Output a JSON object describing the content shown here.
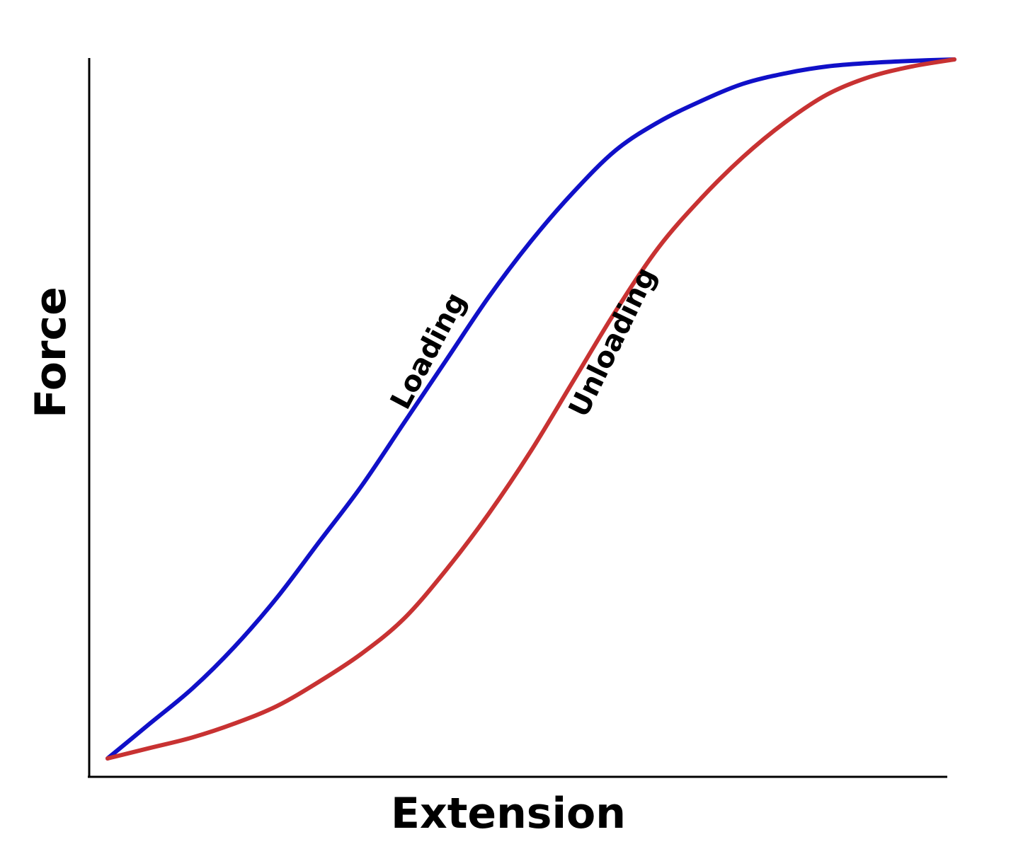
{
  "chart_data": {
    "type": "line",
    "xlabel": "Extension",
    "ylabel": "Force",
    "xlim": [
      0,
      1
    ],
    "ylim": [
      0,
      1
    ],
    "grid": false,
    "legend": "none",
    "series": [
      {
        "name": "Loading",
        "color": "#1010c8",
        "x": [
          0.0,
          0.05,
          0.1,
          0.15,
          0.2,
          0.25,
          0.3,
          0.35,
          0.4,
          0.45,
          0.5,
          0.55,
          0.6,
          0.65,
          0.7,
          0.75,
          0.8,
          0.85,
          0.9,
          0.95,
          1.0
        ],
        "y": [
          0.0,
          0.05,
          0.1,
          0.16,
          0.23,
          0.31,
          0.39,
          0.48,
          0.57,
          0.66,
          0.74,
          0.81,
          0.87,
          0.91,
          0.94,
          0.965,
          0.98,
          0.99,
          0.995,
          0.998,
          1.0
        ]
      },
      {
        "name": "Unloading",
        "color": "#c83232",
        "x": [
          0.0,
          0.05,
          0.1,
          0.15,
          0.2,
          0.25,
          0.3,
          0.35,
          0.4,
          0.45,
          0.5,
          0.55,
          0.6,
          0.65,
          0.7,
          0.75,
          0.8,
          0.85,
          0.9,
          0.95,
          1.0
        ],
        "y": [
          0.0,
          0.015,
          0.03,
          0.05,
          0.075,
          0.11,
          0.15,
          0.2,
          0.27,
          0.35,
          0.44,
          0.54,
          0.64,
          0.73,
          0.8,
          0.86,
          0.91,
          0.95,
          0.975,
          0.99,
          1.0
        ]
      }
    ]
  }
}
